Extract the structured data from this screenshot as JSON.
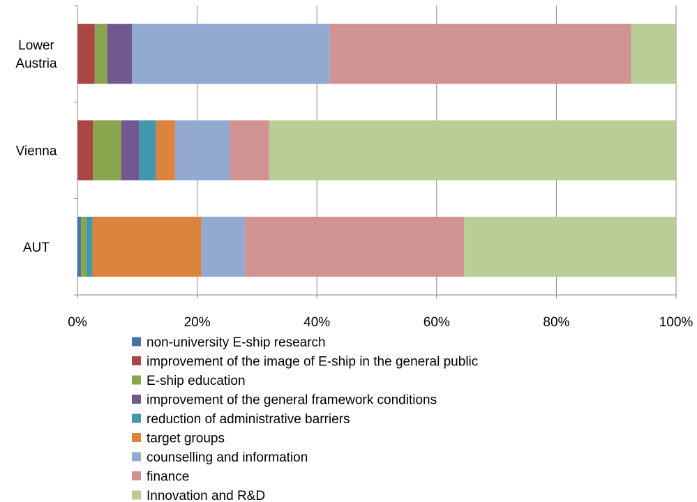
{
  "chart_data": {
    "type": "bar",
    "orientation": "horizontal",
    "stacked": "percent",
    "title": "",
    "xlabel": "",
    "ylabel": "",
    "xlim": [
      0,
      100
    ],
    "x_ticks": [
      "0%",
      "20%",
      "40%",
      "60%",
      "80%",
      "100%"
    ],
    "grid": true,
    "legend_position": "bottom",
    "categories": [
      [
        "Lower",
        "Austria"
      ],
      [
        "Vienna"
      ],
      [
        "AUT"
      ]
    ],
    "series": [
      {
        "name": "non-university E-ship research",
        "color": "#4674AB",
        "values": [
          0,
          0,
          0.6
        ]
      },
      {
        "name": "improvement of the image of E-ship in the general public",
        "color": "#AA4643",
        "values": [
          2.9,
          2.6,
          0
        ]
      },
      {
        "name": "E-ship education",
        "color": "#89A54E",
        "values": [
          2.1,
          4.7,
          0.9
        ]
      },
      {
        "name": "improvement of the general framework conditions",
        "color": "#71588F",
        "values": [
          4.1,
          3.0,
          0
        ]
      },
      {
        "name": "reduction of administrative barriers",
        "color": "#4198AF",
        "values": [
          0,
          2.8,
          1.0
        ]
      },
      {
        "name": "target groups",
        "color": "#DB843D",
        "values": [
          0,
          3.2,
          18.2
        ]
      },
      {
        "name": "counselling and information",
        "color": "#93A9CF",
        "values": [
          33.1,
          9.2,
          7.3
        ]
      },
      {
        "name": "finance",
        "color": "#D19392",
        "values": [
          50.4,
          6.5,
          36.6
        ]
      },
      {
        "name": "Innovation and R&D",
        "color": "#B9CD96",
        "values": [
          7.5,
          68.0,
          35.4
        ]
      }
    ]
  }
}
